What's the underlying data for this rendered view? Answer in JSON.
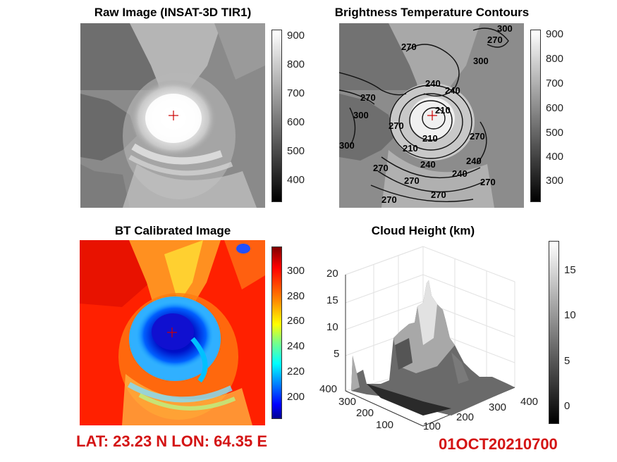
{
  "panels": {
    "raw": {
      "title": "Raw Image (INSAT-3D TIR1)",
      "colorbar_ticks": [
        "900",
        "800",
        "700",
        "600",
        "500",
        "400"
      ]
    },
    "contours": {
      "title": "Brightness Temperature Contours",
      "colorbar_ticks": [
        "900",
        "800",
        "700",
        "600",
        "500",
        "400",
        "300"
      ],
      "contour_labels": [
        "270",
        "270",
        "300",
        "300",
        "240",
        "210",
        "270",
        "240",
        "270",
        "210",
        "270",
        "240",
        "270",
        "270",
        "300",
        "300",
        "240",
        "270",
        "210",
        "240",
        "270",
        "270"
      ]
    },
    "bt": {
      "title": "BT Calibrated Image",
      "colorbar_ticks": [
        "300",
        "280",
        "260",
        "240",
        "220",
        "200"
      ]
    },
    "height": {
      "title": "Cloud Height (km)",
      "z_ticks": [
        "20",
        "15",
        "10",
        "5"
      ],
      "y_ticks": [
        "400",
        "300",
        "200",
        "100"
      ],
      "x_ticks": [
        "100",
        "200",
        "300",
        "400"
      ],
      "colorbar_ticks": [
        "15",
        "10",
        "5",
        "0"
      ]
    }
  },
  "footer": {
    "position": "LAT: 23.23 N  LON: 64.35 E",
    "timestamp": "01OCT20210700"
  },
  "colors": {
    "marker": "#cc0000",
    "footer_text": "#d41414"
  }
}
